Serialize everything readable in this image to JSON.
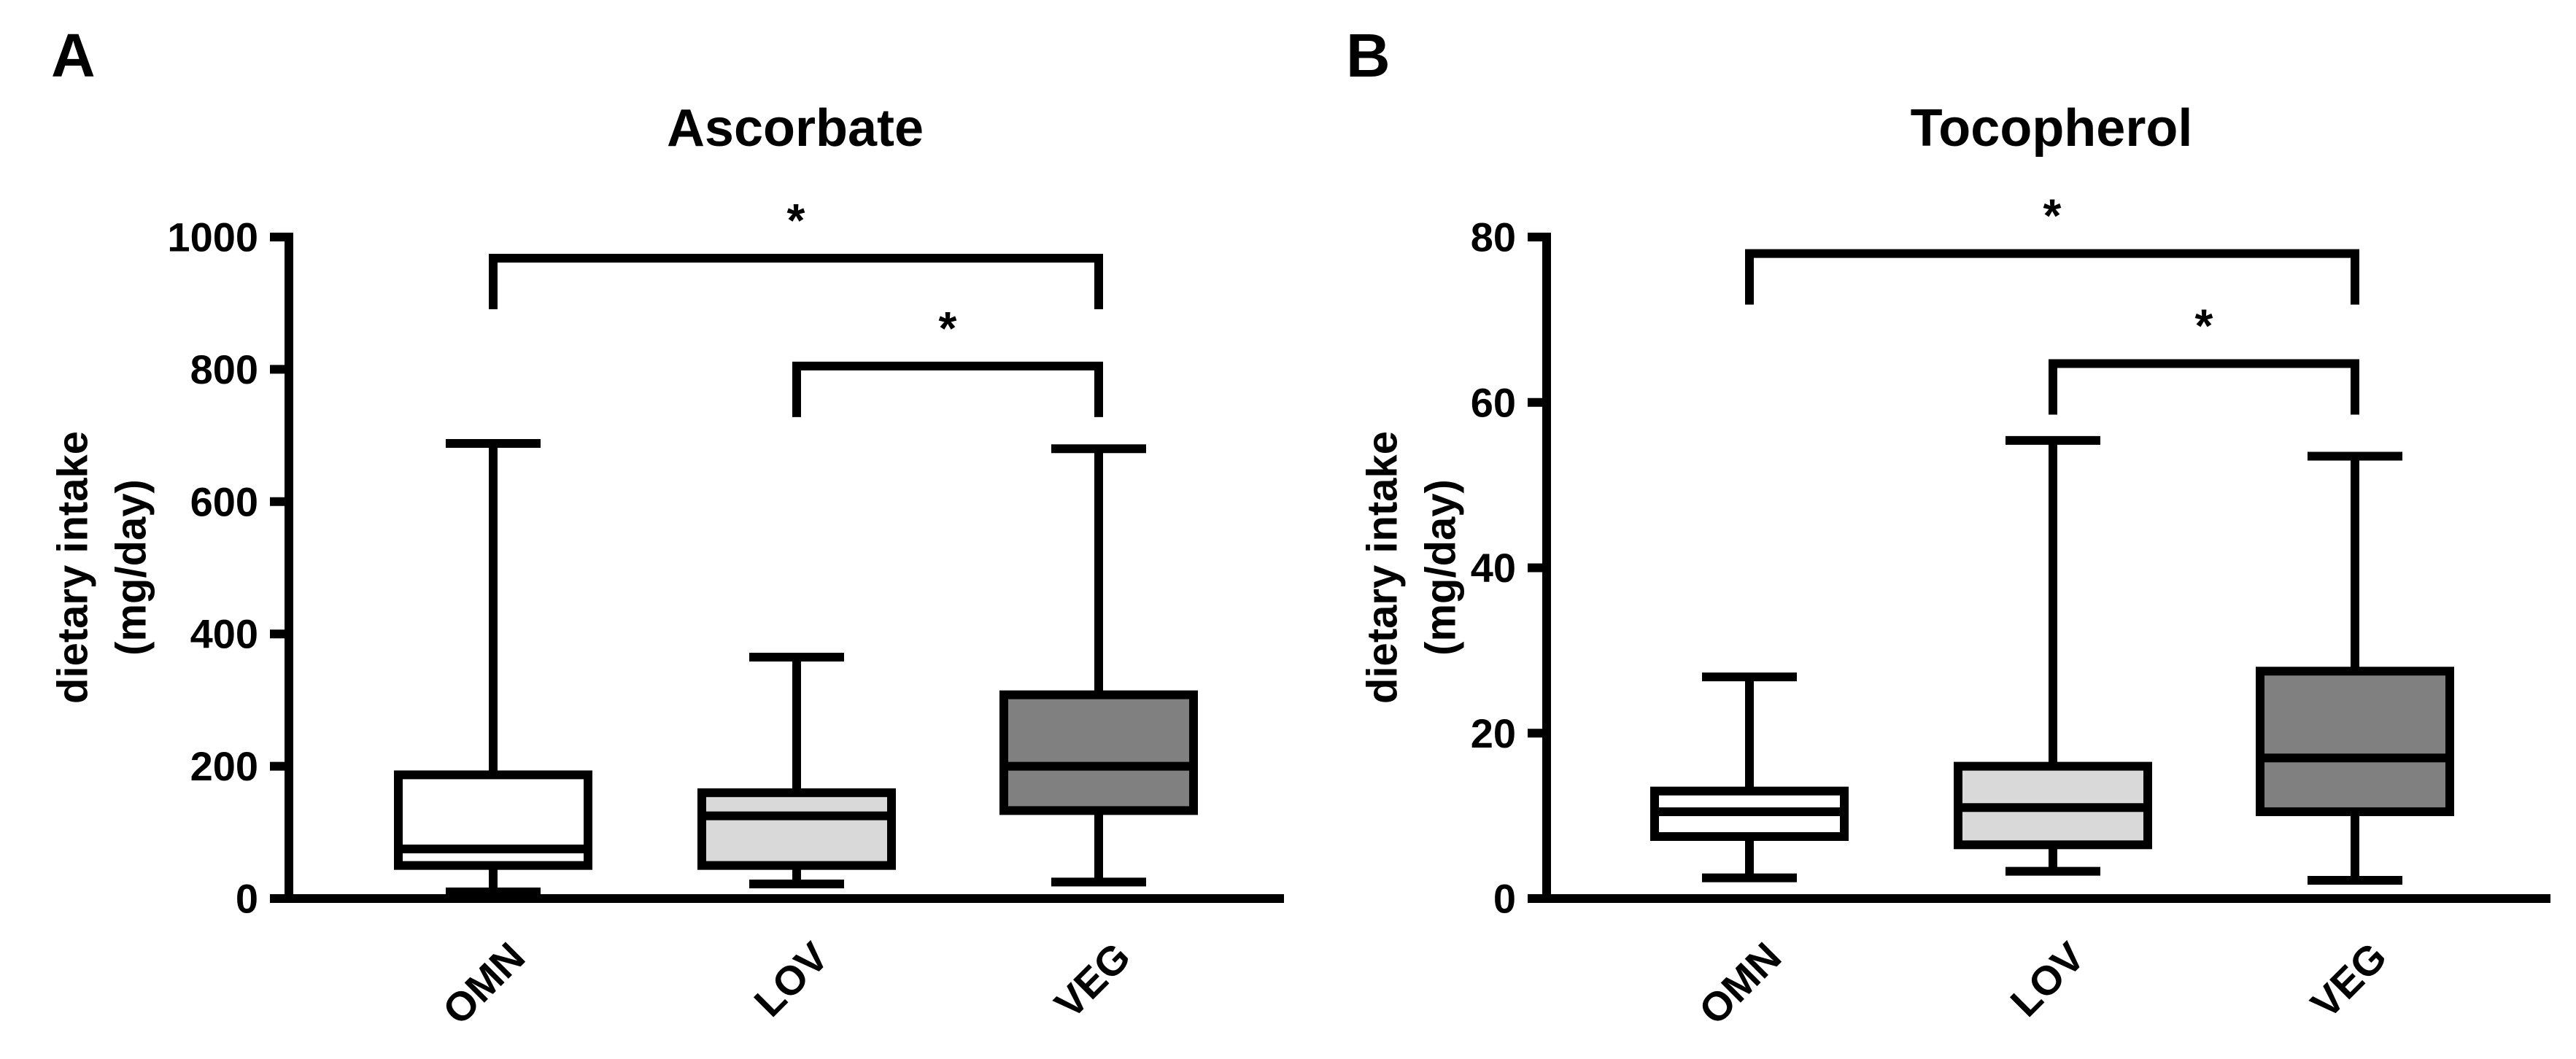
{
  "chart_data": [
    {
      "type": "box",
      "panel_label": "A",
      "title": "Ascorbate",
      "ylabel_lines": [
        "dietary intake",
        "(mg/day)"
      ],
      "ylim": [
        0,
        1000
      ],
      "yticks": [
        0,
        200,
        400,
        600,
        800,
        1000
      ],
      "categories": [
        "OMN",
        "LOV",
        "VEG"
      ],
      "box_colors": [
        "#ffffff",
        "#d9d9d9",
        "#808080"
      ],
      "boxes": [
        {
          "category": "OMN",
          "min": 10,
          "q1": 50,
          "median": 75,
          "q3": 187,
          "max": 688
        },
        {
          "category": "LOV",
          "min": 22,
          "q1": 50,
          "median": 125,
          "q3": 160,
          "max": 365
        },
        {
          "category": "VEG",
          "min": 25,
          "q1": 133,
          "median": 200,
          "q3": 308,
          "max": 680
        }
      ],
      "significance": [
        {
          "from": "OMN",
          "to": "VEG",
          "label": "*",
          "level": 968
        },
        {
          "from": "LOV",
          "to": "VEG",
          "label": "*",
          "level": 805
        }
      ]
    },
    {
      "type": "box",
      "panel_label": "B",
      "title": "Tocopherol",
      "ylabel_lines": [
        "dietary intake",
        "(mg/day)"
      ],
      "ylim": [
        0,
        80
      ],
      "yticks": [
        0,
        20,
        40,
        60,
        80
      ],
      "categories": [
        "OMN",
        "LOV",
        "VEG"
      ],
      "box_colors": [
        "#ffffff",
        "#d9d9d9",
        "#808080"
      ],
      "boxes": [
        {
          "category": "OMN",
          "min": 2.5,
          "q1": 7.5,
          "median": 10.5,
          "q3": 13,
          "max": 26.8
        },
        {
          "category": "LOV",
          "min": 3.3,
          "q1": 6.5,
          "median": 11,
          "q3": 16,
          "max": 55.4
        },
        {
          "category": "VEG",
          "min": 2.2,
          "q1": 10.5,
          "median": 17,
          "q3": 27.5,
          "max": 53.5
        }
      ],
      "significance": [
        {
          "from": "OMN",
          "to": "VEG",
          "label": "*",
          "level": 78
        },
        {
          "from": "LOV",
          "to": "VEG",
          "label": "*",
          "level": 64.7
        }
      ]
    }
  ]
}
